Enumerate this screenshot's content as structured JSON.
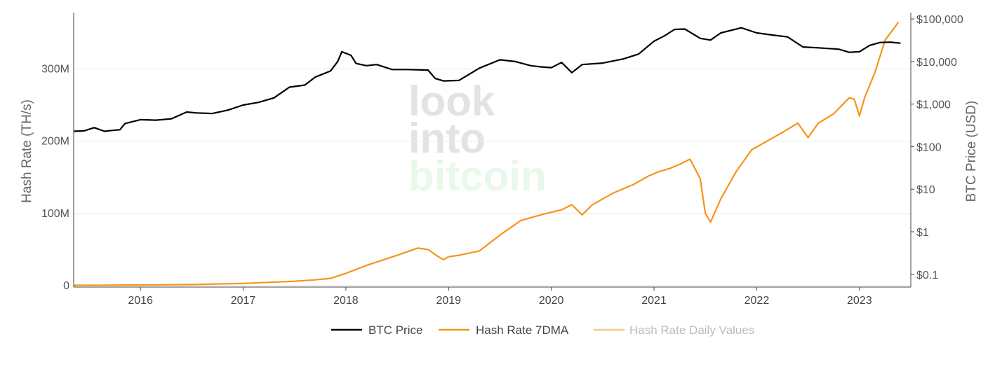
{
  "watermark": {
    "line1": "look",
    "line2": "into",
    "line3": "bitcoin"
  },
  "colors": {
    "btc_price": "#000000",
    "hash_rate_7dma": "#f7931a",
    "hash_rate_daily": "#f3c98b",
    "watermark_gray": "#e3e3e3",
    "watermark_green": "#e8f8ea",
    "grid": "#e9e9e9",
    "axis": "#444444"
  },
  "chart_data": {
    "type": "line",
    "title": "",
    "xlabel": "",
    "ylabel_left": "Hash Rate (TH/s)",
    "ylabel_right": "BTC Price (USD)",
    "xlim": [
      2015.35,
      2023.5
    ],
    "ylim_left": [
      -2000000,
      378000000
    ],
    "ylim_right_log10": [
      -1.3,
      5.15
    ],
    "y_right_scale": "log",
    "grid": true,
    "legend_position": "bottom-center",
    "x_ticks": [
      "2016",
      "2017",
      "2018",
      "2019",
      "2020",
      "2021",
      "2022",
      "2023"
    ],
    "x_tick_values": [
      2016,
      2017,
      2018,
      2019,
      2020,
      2021,
      2022,
      2023
    ],
    "y_left_ticks": [
      "0",
      "100M",
      "200M",
      "300M"
    ],
    "y_left_tick_values": [
      0,
      100000000,
      200000000,
      300000000
    ],
    "y_right_ticks": [
      "$0.1",
      "$1",
      "$10",
      "$100",
      "$1,000",
      "$10,000",
      "$100,000"
    ],
    "y_right_tick_values": [
      0.1,
      1,
      10,
      100,
      1000,
      10000,
      100000
    ],
    "series": [
      {
        "name": "BTC Price",
        "axis": "right",
        "x": [
          2015.35,
          2015.45,
          2015.55,
          2015.65,
          2015.72,
          2015.8,
          2015.85,
          2016.0,
          2016.15,
          2016.3,
          2016.45,
          2016.55,
          2016.7,
          2016.85,
          2017.0,
          2017.15,
          2017.3,
          2017.45,
          2017.6,
          2017.7,
          2017.85,
          2017.92,
          2017.96,
          2018.05,
          2018.1,
          2018.2,
          2018.3,
          2018.45,
          2018.6,
          2018.8,
          2018.87,
          2018.95,
          2019.1,
          2019.3,
          2019.5,
          2019.65,
          2019.8,
          2019.9,
          2020.0,
          2020.1,
          2020.2,
          2020.3,
          2020.5,
          2020.7,
          2020.85,
          2021.0,
          2021.1,
          2021.2,
          2021.3,
          2021.45,
          2021.55,
          2021.65,
          2021.85,
          2022.0,
          2022.15,
          2022.3,
          2022.45,
          2022.6,
          2022.8,
          2022.9,
          2023.0,
          2023.1,
          2023.2,
          2023.3,
          2023.4
        ],
        "values": [
          230,
          235,
          280,
          230,
          240,
          250,
          350,
          430,
          420,
          450,
          650,
          620,
          600,
          720,
          950,
          1100,
          1400,
          2500,
          2800,
          4300,
          6000,
          10000,
          17000,
          14000,
          9000,
          8000,
          8500,
          6500,
          6500,
          6300,
          4000,
          3500,
          3600,
          7000,
          11000,
          10000,
          8000,
          7500,
          7200,
          9500,
          5500,
          8500,
          9200,
          11500,
          15000,
          30000,
          40000,
          57000,
          58000,
          35000,
          32000,
          47000,
          62000,
          47000,
          42000,
          38000,
          22000,
          21000,
          19500,
          16500,
          17000,
          24000,
          28000,
          28500,
          27000
        ]
      },
      {
        "name": "Hash Rate 7DMA",
        "axis": "left",
        "x": [
          2015.35,
          2015.6,
          2016.0,
          2016.5,
          2017.0,
          2017.5,
          2017.7,
          2017.85,
          2018.0,
          2018.2,
          2018.5,
          2018.7,
          2018.8,
          2018.9,
          2018.95,
          2019.0,
          2019.1,
          2019.3,
          2019.5,
          2019.7,
          2019.9,
          2020.1,
          2020.2,
          2020.3,
          2020.4,
          2020.5,
          2020.6,
          2020.8,
          2020.95,
          2021.05,
          2021.15,
          2021.25,
          2021.35,
          2021.45,
          2021.5,
          2021.55,
          2021.65,
          2021.8,
          2021.95,
          2022.1,
          2022.25,
          2022.4,
          2022.5,
          2022.6,
          2022.75,
          2022.9,
          2022.95,
          2023.0,
          2023.05,
          2023.15,
          2023.25,
          2023.33,
          2023.38
        ],
        "values": [
          500000,
          600000,
          900000,
          1500000,
          3000000,
          6000000,
          8000000,
          10000000,
          17000000,
          28000000,
          42000000,
          52000000,
          50000000,
          40000000,
          36000000,
          40000000,
          42000000,
          48000000,
          70000000,
          90000000,
          98000000,
          105000000,
          112000000,
          98000000,
          112000000,
          120000000,
          128000000,
          140000000,
          152000000,
          158000000,
          162000000,
          168000000,
          175000000,
          148000000,
          100000000,
          88000000,
          120000000,
          158000000,
          188000000,
          200000000,
          212000000,
          225000000,
          205000000,
          225000000,
          238000000,
          260000000,
          258000000,
          235000000,
          260000000,
          295000000,
          340000000,
          355000000,
          365000000
        ]
      },
      {
        "name": "Hash Rate Daily Values",
        "axis": "left",
        "visible": false,
        "x": [],
        "values": []
      }
    ]
  }
}
